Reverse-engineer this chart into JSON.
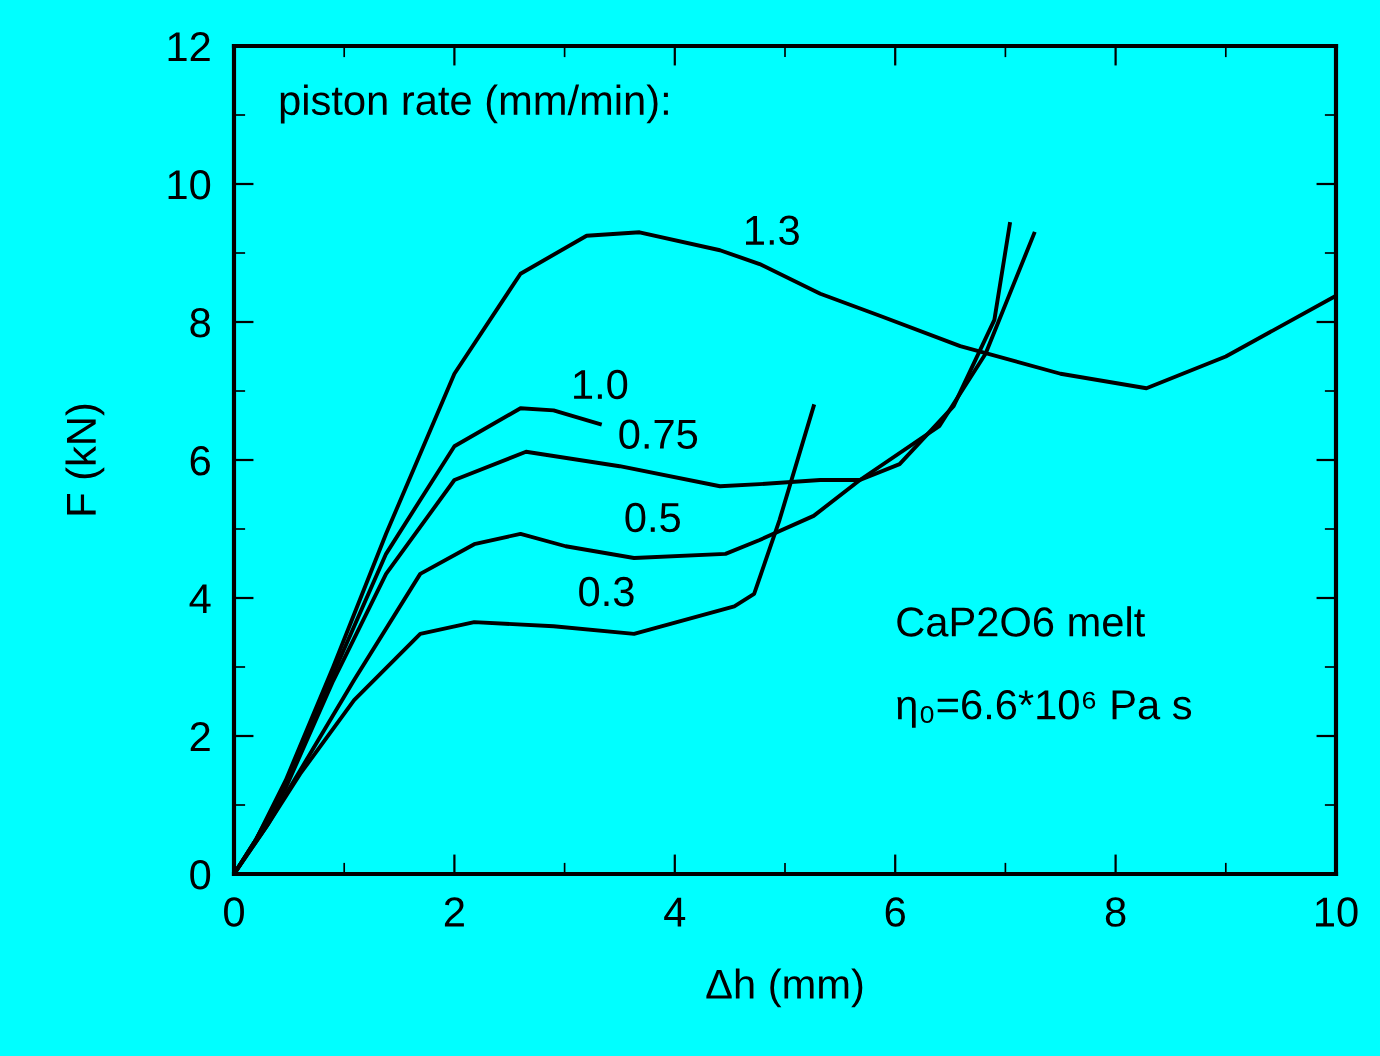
{
  "chart_data": {
    "type": "line",
    "xlabel": "Δh (mm)",
    "ylabel": "F (kN)",
    "xlim": [
      0,
      10
    ],
    "xticks": [
      0,
      2,
      4,
      6,
      8,
      10
    ],
    "ylim": [
      0,
      12
    ],
    "yticks": [
      0,
      2,
      4,
      6,
      8,
      10,
      12
    ],
    "grid": false,
    "legend": false,
    "marker": "none",
    "line_style": "solid",
    "series": [
      {
        "name": "1.3",
        "color": "#000000",
        "x": [
          0,
          0.2,
          0.47,
          0.9,
          1.38,
          2.0,
          2.6,
          3.2,
          3.68,
          4.41,
          4.77,
          5.32,
          5.86,
          6.59,
          7.5,
          8.28,
          9.0,
          10.0
        ],
        "values": [
          0,
          0.5,
          1.36,
          3.0,
          4.93,
          7.25,
          8.7,
          9.25,
          9.3,
          9.04,
          8.84,
          8.41,
          8.09,
          7.65,
          7.25,
          7.04,
          7.5,
          8.38
        ]
      },
      {
        "name": "1.0",
        "color": "#000000",
        "x": [
          0,
          0.2,
          0.47,
          0.9,
          1.38,
          2.0,
          2.6,
          2.9,
          3.32
        ],
        "values": [
          0,
          0.5,
          1.3,
          2.9,
          4.64,
          6.2,
          6.75,
          6.72,
          6.52
        ]
      },
      {
        "name": "0.75",
        "color": "#000000",
        "x": [
          0,
          0.2,
          0.47,
          0.9,
          1.38,
          2.0,
          2.65,
          3.5,
          4.41,
          4.77,
          5.32,
          5.68,
          6.04,
          6.53,
          6.9,
          7.04
        ],
        "values": [
          0,
          0.5,
          1.25,
          2.8,
          4.35,
          5.71,
          6.12,
          5.91,
          5.62,
          5.65,
          5.71,
          5.71,
          5.94,
          6.78,
          8.03,
          9.42
        ]
      },
      {
        "name": "0.5",
        "color": "#000000",
        "x": [
          0,
          0.3,
          0.6,
          1.09,
          1.69,
          2.18,
          2.6,
          3.01,
          3.63,
          4.46,
          4.77,
          5.26,
          5.68,
          6.4,
          6.82,
          7.26
        ],
        "values": [
          0,
          0.7,
          1.5,
          2.81,
          4.35,
          4.78,
          4.93,
          4.75,
          4.58,
          4.64,
          4.84,
          5.19,
          5.71,
          6.49,
          7.54,
          9.28
        ]
      },
      {
        "name": "0.3",
        "color": "#000000",
        "x": [
          0,
          0.3,
          0.6,
          1.09,
          1.69,
          2.18,
          2.9,
          3.63,
          4.54,
          4.72,
          4.95,
          5.26
        ],
        "values": [
          0,
          0.7,
          1.45,
          2.52,
          3.48,
          3.65,
          3.59,
          3.48,
          3.88,
          4.06,
          5.13,
          6.78
        ]
      }
    ],
    "annotations": [
      "piston rate (mm/min):",
      "CaP2O6 melt",
      "η₀=6.6*10⁶ Pa s"
    ]
  }
}
